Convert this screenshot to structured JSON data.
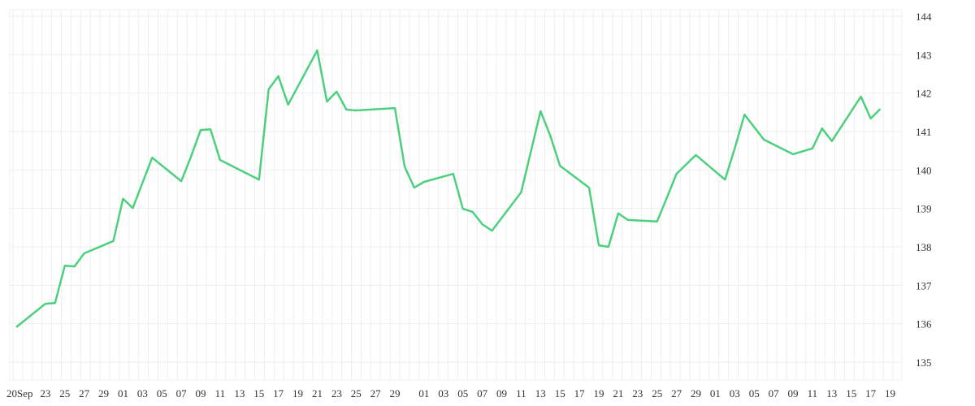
{
  "chart_data": {
    "type": "line",
    "title": "",
    "xlabel": "",
    "ylabel": "",
    "ylim": [
      135,
      144
    ],
    "y_ticks": [
      "135",
      "136",
      "137",
      "138",
      "139",
      "140",
      "141",
      "142",
      "143",
      "144"
    ],
    "y_axis_position": "right",
    "grid": true,
    "line_color": "#4cd07d",
    "x_tick_labels": [
      {
        "date": "09-20",
        "label": "20Sep"
      },
      {
        "date": "09-23",
        "label": "23"
      },
      {
        "date": "09-25",
        "label": "25"
      },
      {
        "date": "09-27",
        "label": "27"
      },
      {
        "date": "09-29",
        "label": "29"
      },
      {
        "date": "10-01",
        "label": "01"
      },
      {
        "date": "10-03",
        "label": "03"
      },
      {
        "date": "10-05",
        "label": "05"
      },
      {
        "date": "10-07",
        "label": "07"
      },
      {
        "date": "10-09",
        "label": "09"
      },
      {
        "date": "10-11",
        "label": "11"
      },
      {
        "date": "10-13",
        "label": "13"
      },
      {
        "date": "10-15",
        "label": "15"
      },
      {
        "date": "10-17",
        "label": "17"
      },
      {
        "date": "10-19",
        "label": "19"
      },
      {
        "date": "10-21",
        "label": "21"
      },
      {
        "date": "10-23",
        "label": "23"
      },
      {
        "date": "10-25",
        "label": "25"
      },
      {
        "date": "10-27",
        "label": "27"
      },
      {
        "date": "10-29",
        "label": "29"
      },
      {
        "date": "11-01",
        "label": "01"
      },
      {
        "date": "11-03",
        "label": "03"
      },
      {
        "date": "11-05",
        "label": "05"
      },
      {
        "date": "11-07",
        "label": "07"
      },
      {
        "date": "11-09",
        "label": "09"
      },
      {
        "date": "11-11",
        "label": "11"
      },
      {
        "date": "11-13",
        "label": "13"
      },
      {
        "date": "11-15",
        "label": "15"
      },
      {
        "date": "11-17",
        "label": "17"
      },
      {
        "date": "11-19",
        "label": "19"
      },
      {
        "date": "11-21",
        "label": "21"
      },
      {
        "date": "11-23",
        "label": "23"
      },
      {
        "date": "11-25",
        "label": "25"
      },
      {
        "date": "11-27",
        "label": "27"
      },
      {
        "date": "11-29",
        "label": "29"
      },
      {
        "date": "12-01",
        "label": "01"
      },
      {
        "date": "12-03",
        "label": "03"
      },
      {
        "date": "12-05",
        "label": "05"
      },
      {
        "date": "12-07",
        "label": "07"
      },
      {
        "date": "12-09",
        "label": "09"
      },
      {
        "date": "12-11",
        "label": "11"
      },
      {
        "date": "12-13",
        "label": "13"
      },
      {
        "date": "12-15",
        "label": "15"
      },
      {
        "date": "12-17",
        "label": "17"
      },
      {
        "date": "12-19",
        "label": "19"
      }
    ],
    "series": [
      {
        "x": [
          "09-20",
          "09-23",
          "09-24",
          "09-25",
          "09-26",
          "09-27",
          "09-30",
          "10-01",
          "10-02",
          "10-04",
          "10-07",
          "10-08",
          "10-09",
          "10-10",
          "10-11",
          "10-15",
          "10-16",
          "10-17",
          "10-18",
          "10-21",
          "10-22",
          "10-23",
          "10-24",
          "10-25",
          "10-29",
          "10-30",
          "10-31",
          "11-01",
          "11-04",
          "11-05",
          "11-06",
          "11-07",
          "11-08",
          "11-11",
          "11-13",
          "11-14",
          "11-15",
          "11-18",
          "11-19",
          "11-20",
          "11-21",
          "11-22",
          "11-25",
          "11-26",
          "11-27",
          "11-29",
          "12-02",
          "12-03",
          "12-04",
          "12-06",
          "12-09",
          "12-11",
          "12-12",
          "12-13",
          "12-16",
          "12-17",
          "12-18"
        ],
        "y": [
          135.91,
          136.52,
          136.54,
          137.51,
          137.49,
          137.83,
          138.15,
          139.25,
          139.01,
          140.32,
          139.71,
          140.35,
          141.04,
          141.06,
          140.26,
          139.75,
          142.1,
          142.44,
          141.7,
          143.11,
          141.78,
          142.04,
          141.57,
          141.55,
          141.61,
          140.09,
          139.54,
          139.69,
          139.9,
          138.99,
          138.91,
          138.59,
          138.42,
          139.42,
          141.53,
          140.89,
          140.11,
          139.54,
          138.04,
          138.0,
          138.87,
          138.7,
          138.66,
          139.27,
          139.9,
          140.39,
          139.75,
          140.56,
          141.44,
          140.79,
          140.41,
          140.56,
          141.08,
          140.75,
          141.91,
          141.34,
          141.59
        ]
      }
    ]
  }
}
